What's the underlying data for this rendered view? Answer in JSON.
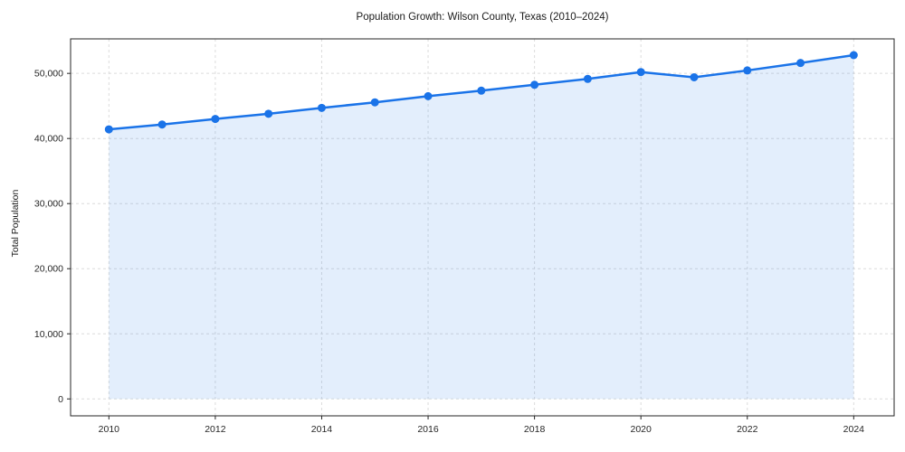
{
  "chart_data": {
    "type": "line",
    "title": "Population Growth: Wilson County, Texas (2010–2024)",
    "xlabel": "",
    "ylabel": "Total Population",
    "x": [
      2010,
      2011,
      2012,
      2013,
      2014,
      2015,
      2016,
      2017,
      2018,
      2019,
      2020,
      2021,
      2022,
      2023,
      2024
    ],
    "series": [
      {
        "name": "Total Population",
        "values": [
          41400,
          42150,
          43000,
          43800,
          44700,
          45550,
          46500,
          47350,
          48250,
          49150,
          50200,
          49400,
          50450,
          51600,
          52800
        ]
      }
    ],
    "marker": "circle",
    "area_fill": true,
    "baseline": 0,
    "grid": true,
    "legend": "none",
    "xlim": [
      2009.28,
      2024.76
    ],
    "ylim": [
      -2600,
      55300
    ],
    "xticks": [
      2010,
      2012,
      2014,
      2016,
      2018,
      2020,
      2022,
      2024
    ],
    "xtick_labels": [
      "2010",
      "2012",
      "2014",
      "2016",
      "2018",
      "2020",
      "2022",
      "2024"
    ],
    "yticks": [
      0,
      10000,
      20000,
      30000,
      40000,
      50000
    ],
    "ytick_labels": [
      "0",
      "10,000",
      "20,000",
      "30,000",
      "40,000",
      "50,000"
    ],
    "colors": {
      "line": "#1a73e8",
      "marker": "#1a73e8",
      "fill": "rgba(26,115,232,0.12)",
      "grid": "#dcdcdc",
      "spine": "#262626",
      "text": "#262626"
    }
  }
}
